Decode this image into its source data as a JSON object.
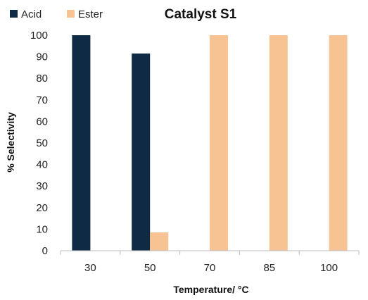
{
  "chart_data": {
    "type": "bar",
    "title": "Catalyst S1",
    "xlabel": "Temperature/ °C",
    "ylabel": "% Selectivity",
    "categories": [
      "30",
      "50",
      "70",
      "85",
      "100"
    ],
    "series": [
      {
        "name": "Acid",
        "color": "#0f2a45",
        "values": [
          100,
          91.5,
          0,
          0,
          0
        ]
      },
      {
        "name": "Ester",
        "color": "#f7c393",
        "values": [
          0,
          8.5,
          100,
          100,
          100
        ]
      }
    ],
    "ylim": [
      0,
      100
    ],
    "yticks": [
      0,
      10,
      20,
      30,
      40,
      50,
      60,
      70,
      80,
      90,
      100
    ],
    "grid": false,
    "legend_position": "top-left"
  }
}
